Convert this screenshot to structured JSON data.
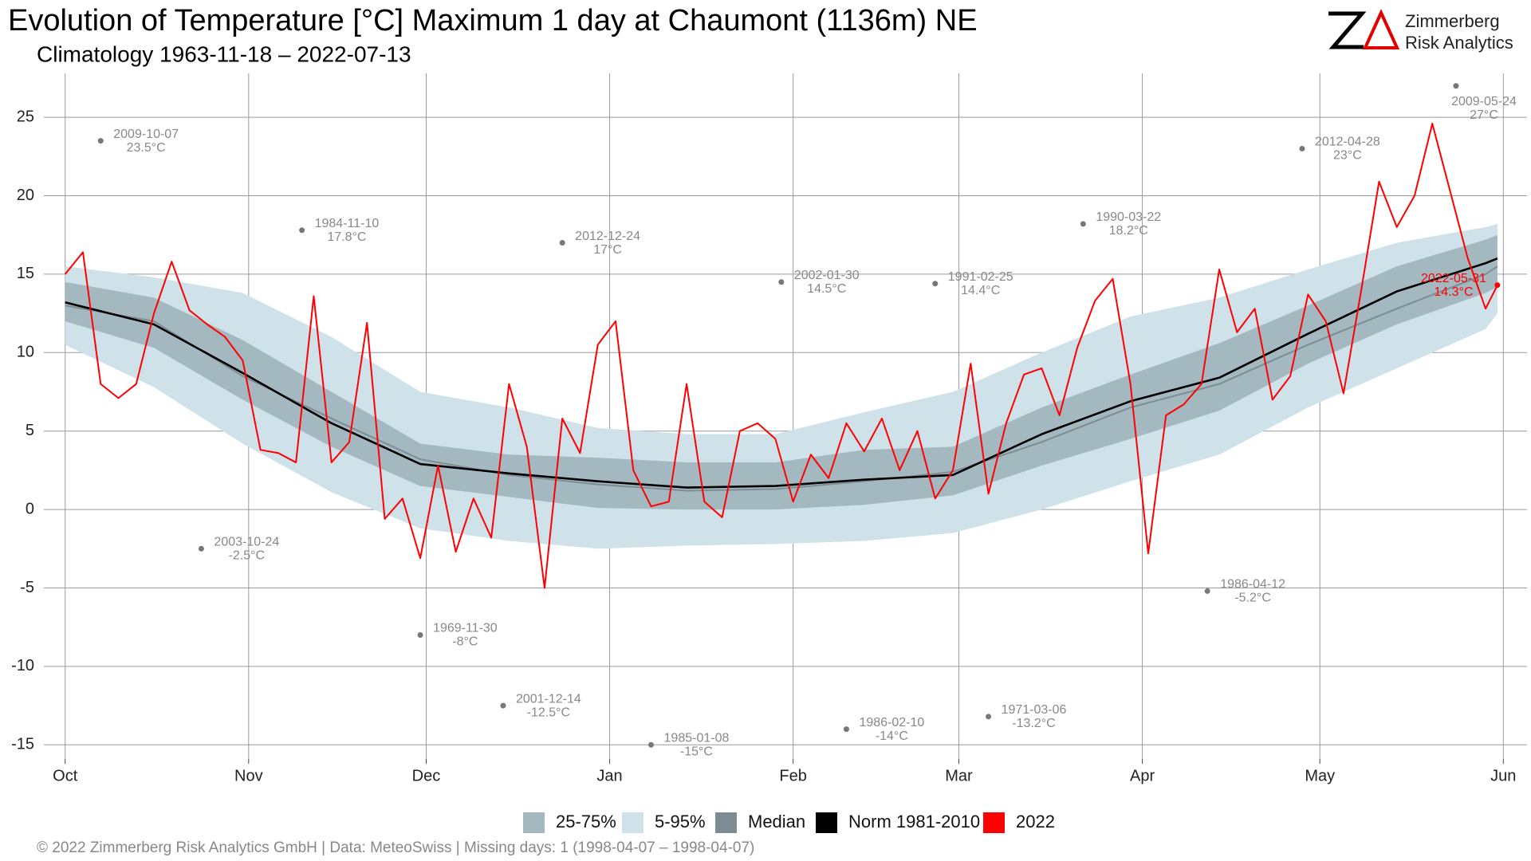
{
  "chart_data": {
    "type": "line",
    "title": "Evolution of Temperature [°C] Maximum 1 day at Chaumont (1136m) NE",
    "subtitle": "Climatology 1963-11-18 – 2022-07-13",
    "logo": {
      "line1": "Zimmerberg",
      "line2": "Risk Analytics"
    },
    "footer": "©  2022 Zimmerberg Risk Analytics GmbH | Data: MeteoSwiss | Missing days: 1 (1998-04-07 – 1998-04-07)",
    "xlim": [
      -3.6,
      247
    ],
    "ylim": [
      -15.9,
      27.8
    ],
    "xticks": [
      {
        "value": 0,
        "label": "Oct"
      },
      {
        "value": 31,
        "label": "Nov"
      },
      {
        "value": 61,
        "label": "Dec"
      },
      {
        "value": 92,
        "label": "Jan"
      },
      {
        "value": 123,
        "label": "Feb"
      },
      {
        "value": 151,
        "label": "Mar"
      },
      {
        "value": 182,
        "label": "Apr"
      },
      {
        "value": 212,
        "label": "May"
      },
      {
        "value": 243,
        "label": "Jun"
      }
    ],
    "yticks": [
      -15,
      -10,
      -5,
      0,
      5,
      10,
      15,
      20,
      25
    ],
    "grid": true,
    "legend": "bottom",
    "series": [
      {
        "name": "25-75%",
        "color": "#a4b8c0",
        "x": [
          0,
          15,
          30,
          45,
          60,
          75,
          90,
          105,
          120,
          135,
          150,
          165,
          180,
          195,
          210,
          225,
          240,
          242
        ],
        "low": [
          12,
          10.3,
          7,
          4,
          1.5,
          0.8,
          0.1,
          0,
          0,
          0.3,
          0.9,
          2.8,
          4.5,
          6.3,
          9.3,
          11.8,
          13.8,
          14.2
        ],
        "high": [
          14.5,
          13.5,
          10.8,
          7.5,
          4.2,
          3.5,
          3.3,
          3,
          3,
          3.8,
          4,
          6.5,
          8.6,
          10.6,
          13,
          15.5,
          17.2,
          17.5
        ]
      },
      {
        "name": "5-95%",
        "color": "#cfe1e9",
        "x": [
          0,
          15,
          30,
          45,
          60,
          75,
          90,
          105,
          120,
          135,
          150,
          165,
          180,
          195,
          210,
          225,
          240,
          242
        ],
        "low": [
          10.5,
          7.8,
          4.2,
          1.1,
          -1.2,
          -2,
          -2.5,
          -2.3,
          -2.2,
          -2,
          -1.5,
          0,
          1.8,
          3.5,
          6.5,
          9,
          11.5,
          12.5
        ],
        "high": [
          15.5,
          14.8,
          13.8,
          11,
          7.5,
          6.5,
          5.2,
          4.8,
          4.8,
          6.2,
          7.5,
          10,
          12.3,
          13.5,
          15.3,
          17,
          18,
          18.2
        ]
      },
      {
        "name": "Median",
        "color": "#7d8d93",
        "x": [
          0,
          15,
          30,
          45,
          60,
          75,
          90,
          105,
          120,
          135,
          150,
          165,
          180,
          195,
          210,
          225,
          240,
          242
        ],
        "values": [
          13,
          12,
          8.5,
          5.8,
          3.2,
          2.2,
          1.6,
          1.2,
          1.3,
          1.8,
          2.4,
          4.3,
          6.5,
          8,
          10.5,
          12.8,
          15,
          15.5
        ]
      },
      {
        "name": "Norm 1981-2010",
        "color": "#000000",
        "x": [
          0,
          15,
          30,
          45,
          60,
          75,
          90,
          105,
          120,
          135,
          150,
          165,
          180,
          195,
          210,
          225,
          240,
          242
        ],
        "values": [
          13.2,
          11.8,
          8.7,
          5.5,
          2.9,
          2.3,
          1.8,
          1.4,
          1.5,
          1.9,
          2.2,
          4.8,
          6.9,
          8.4,
          11.2,
          13.9,
          15.7,
          16
        ]
      },
      {
        "name": "2022",
        "color": "#ff0000",
        "x": [
          0,
          3,
          6,
          9,
          12,
          15,
          18,
          21,
          24,
          27,
          30,
          33,
          36,
          39,
          42,
          45,
          48,
          51,
          54,
          57,
          60,
          63,
          66,
          69,
          72,
          75,
          78,
          81,
          84,
          87,
          90,
          93,
          96,
          99,
          102,
          105,
          108,
          111,
          114,
          117,
          120,
          123,
          126,
          129,
          132,
          135,
          138,
          141,
          144,
          147,
          150,
          153,
          156,
          159,
          162,
          165,
          168,
          171,
          174,
          177,
          180,
          183,
          186,
          189,
          192,
          195,
          198,
          201,
          204,
          207,
          210,
          213,
          216,
          219,
          222,
          225,
          228,
          231,
          234,
          237,
          240,
          242
        ],
        "values": [
          15,
          16.4,
          8,
          7.1,
          8,
          12.5,
          15.8,
          12.7,
          11.8,
          11,
          9.5,
          3.8,
          3.6,
          3,
          13.6,
          3,
          4.3,
          11.9,
          -0.6,
          0.7,
          -3.1,
          2.8,
          -2.7,
          0.7,
          -1.8,
          8,
          4,
          -5,
          5.8,
          3.6,
          10.5,
          12,
          2.5,
          0.2,
          0.5,
          8,
          0.5,
          -0.5,
          5,
          5.5,
          4.5,
          0.5,
          3.5,
          2,
          5.5,
          3.7,
          5.8,
          2.5,
          5,
          0.7,
          2.5,
          9.3,
          1,
          5.5,
          8.6,
          9,
          6,
          10.3,
          13.3,
          14.7,
          8,
          -2.8,
          6,
          6.7,
          8,
          15.3,
          11.3,
          12.8,
          7,
          8.5,
          13.7,
          12,
          7.4,
          14,
          20.9,
          18,
          20,
          24.6,
          20.3,
          16,
          12.8,
          14.3
        ]
      }
    ],
    "records": [
      {
        "date": "2009-10-07",
        "x": 6,
        "value": 23.5,
        "value_label": "23.5°C"
      },
      {
        "date": "1984-11-10",
        "x": 40,
        "value": 17.8,
        "value_label": "17.8°C"
      },
      {
        "date": "2012-12-24",
        "x": 84,
        "value": 17,
        "value_label": "17°C"
      },
      {
        "date": "2002-01-30",
        "x": 121,
        "value": 14.5,
        "value_label": "14.5°C"
      },
      {
        "date": "1991-02-25",
        "x": 147,
        "value": 14.4,
        "value_label": "14.4°C"
      },
      {
        "date": "1990-03-22",
        "x": 172,
        "value": 18.2,
        "value_label": "18.2°C"
      },
      {
        "date": "2012-04-28",
        "x": 209,
        "value": 23,
        "value_label": "23°C"
      },
      {
        "date": "2009-05-24",
        "x": 235,
        "value": 27,
        "value_label": "27°C"
      },
      {
        "date": "2003-10-24",
        "x": 23,
        "value": -2.5,
        "value_label": "-2.5°C"
      },
      {
        "date": "1969-11-30",
        "x": 60,
        "value": -8,
        "value_label": "-8°C"
      },
      {
        "date": "2001-12-14",
        "x": 74,
        "value": -12.5,
        "value_label": "-12.5°C"
      },
      {
        "date": "1985-01-08",
        "x": 99,
        "value": -15,
        "value_label": "-15°C"
      },
      {
        "date": "1986-02-10",
        "x": 132,
        "value": -14,
        "value_label": "-14°C"
      },
      {
        "date": "1971-03-06",
        "x": 156,
        "value": -13.2,
        "value_label": "-13.2°C"
      },
      {
        "date": "1986-04-12",
        "x": 193,
        "value": -5.2,
        "value_label": "-5.2°C"
      },
      {
        "date": "2022-05-31",
        "x": 242,
        "value": 14.3,
        "value_label": "14.3°C",
        "color": "#ff0000"
      }
    ]
  }
}
